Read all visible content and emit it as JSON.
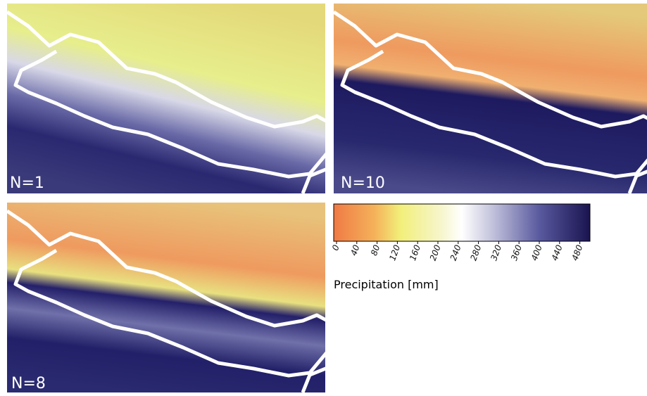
{
  "panels": [
    {
      "label": "N=1"
    },
    {
      "label": "N=10"
    },
    {
      "label": "N=8"
    }
  ],
  "colorbar": {
    "title": "Precipitation [mm]",
    "lim": [
      0,
      500
    ],
    "ticks": [
      0,
      40,
      80,
      120,
      160,
      200,
      240,
      280,
      320,
      360,
      400,
      440,
      480
    ]
  }
}
